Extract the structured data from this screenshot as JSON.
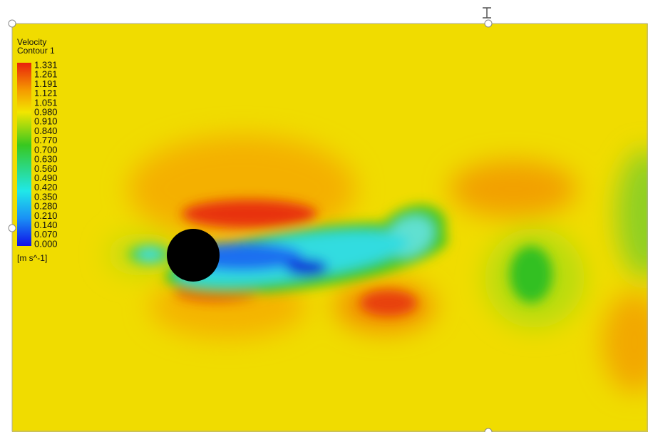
{
  "legend": {
    "title": "Velocity",
    "subtitle": "Contour 1",
    "labels": [
      "1.331",
      "1.261",
      "1.191",
      "1.121",
      "1.051",
      "0.980",
      "0.910",
      "0.840",
      "0.770",
      "0.700",
      "0.630",
      "0.560",
      "0.490",
      "0.420",
      "0.350",
      "0.280",
      "0.210",
      "0.140",
      "0.070",
      "0.000"
    ],
    "unit": "[m s^-1]"
  }
}
